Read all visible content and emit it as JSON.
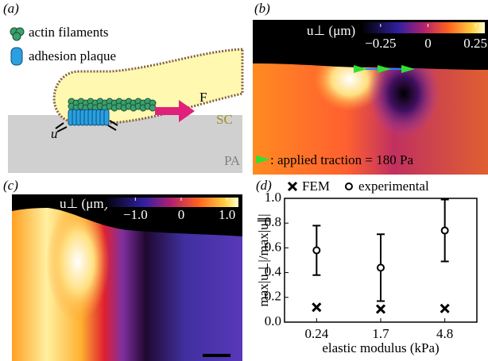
{
  "panels": {
    "a": {
      "label": "(a)",
      "legend": [
        "actin filaments",
        "adhesion plaque"
      ],
      "force": "F",
      "displacement": "u",
      "cell": "SC",
      "substrate": "PA"
    },
    "b": {
      "label": "(b)",
      "colorbar_title": "u⊥ (μm)",
      "clim": [
        -0.35,
        0.3
      ],
      "colorbar_ticks": [
        {
          "value": -0.25,
          "label": "−0.25"
        },
        0,
        0.25
      ],
      "traction_note": ": applied traction = 180 Pa"
    },
    "c": {
      "label": "(c)",
      "colorbar_title": "u⊥ (μm)",
      "clim": [
        -1.7,
        1.25
      ],
      "colorbar_ticks": [
        {
          "value": -1.0,
          "label": "−1.0"
        },
        0,
        {
          "value": 1.0,
          "label": "1.0"
        }
      ]
    },
    "d": {
      "label": "(d)"
    }
  },
  "chart_data": {
    "type": "errorbar",
    "ylabel": "max|u⊥|/max|u∥|",
    "xlabel": "elastic modulus (kPa)",
    "categories": [
      "0.24",
      "1.7",
      "4.8"
    ],
    "series": [
      {
        "name": "FEM",
        "color": "#000000",
        "marker": "x",
        "values": [
          0.12,
          0.105,
          0.11
        ]
      },
      {
        "name": "experimental",
        "color": "#000000",
        "marker": "o",
        "values": [
          0.58,
          0.44,
          0.74
        ],
        "errors": [
          0.2,
          0.27,
          0.25
        ]
      }
    ],
    "ylim": [
      0,
      1.0
    ],
    "yticks": [
      {
        "value": 0,
        "label": "0.0"
      },
      0.2,
      0.4,
      0.6,
      0.8,
      {
        "value": 1.0,
        "label": "1.0"
      }
    ]
  }
}
